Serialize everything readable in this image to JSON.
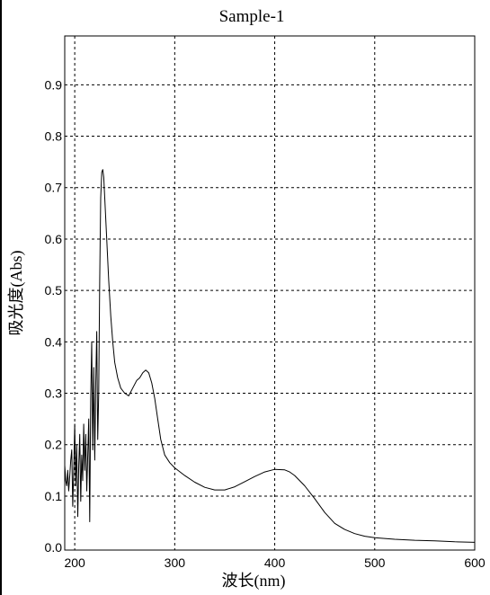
{
  "chart_data": {
    "type": "line",
    "title": "Sample-1",
    "xlabel": "波长(nm)",
    "ylabel": "吸光度(Abs)",
    "xlim": [
      190,
      600
    ],
    "ylim": [
      -0.005,
      0.995
    ],
    "x_ticks": [
      200,
      300,
      400,
      500,
      600
    ],
    "y_ticks": [
      0.0,
      0.1,
      0.2,
      0.3,
      0.4,
      0.5,
      0.6,
      0.7,
      0.8,
      0.9
    ],
    "x_tick_labels": [
      "200",
      "300",
      "400",
      "500",
      "600"
    ],
    "y_tick_labels": [
      "0.0",
      "0.1",
      "0.2",
      "0.3",
      "0.4",
      "0.5",
      "0.6",
      "0.7",
      "0.8",
      "0.9"
    ],
    "grid": true,
    "grid_style": "dashed",
    "legend": "none",
    "series": [
      {
        "color": "#000000",
        "x": [
          190,
          191,
          192,
          193,
          194,
          195,
          196,
          197,
          198,
          199,
          200,
          201,
          202,
          203,
          204,
          205,
          206,
          207,
          208,
          209,
          210,
          211,
          212,
          213,
          214,
          215,
          216,
          217,
          218,
          219,
          220,
          221,
          222,
          223,
          224,
          225,
          226,
          227,
          228,
          229,
          230,
          232,
          234,
          236,
          238,
          240,
          243,
          246,
          250,
          254,
          258,
          262,
          265,
          268,
          271,
          274,
          277,
          280,
          283,
          286,
          290,
          295,
          300,
          310,
          320,
          330,
          340,
          350,
          360,
          370,
          380,
          390,
          400,
          410,
          415,
          420,
          430,
          440,
          450,
          460,
          470,
          480,
          490,
          500,
          520,
          540,
          560,
          580,
          600
        ],
        "y": [
          0.16,
          0.13,
          0.12,
          0.15,
          0.11,
          0.14,
          0.17,
          0.19,
          0.08,
          0.15,
          0.24,
          0.12,
          0.2,
          0.06,
          0.16,
          0.22,
          0.09,
          0.18,
          0.13,
          0.24,
          0.15,
          0.22,
          0.11,
          0.18,
          0.25,
          0.05,
          0.29,
          0.4,
          0.19,
          0.35,
          0.17,
          0.32,
          0.42,
          0.21,
          0.3,
          0.52,
          0.68,
          0.73,
          0.735,
          0.72,
          0.68,
          0.6,
          0.52,
          0.45,
          0.4,
          0.36,
          0.33,
          0.31,
          0.3,
          0.295,
          0.31,
          0.325,
          0.33,
          0.34,
          0.345,
          0.34,
          0.32,
          0.29,
          0.25,
          0.21,
          0.18,
          0.165,
          0.155,
          0.14,
          0.127,
          0.117,
          0.112,
          0.112,
          0.118,
          0.128,
          0.138,
          0.147,
          0.152,
          0.151,
          0.147,
          0.14,
          0.12,
          0.095,
          0.068,
          0.047,
          0.035,
          0.027,
          0.022,
          0.019,
          0.016,
          0.014,
          0.013,
          0.011,
          0.01
        ]
      }
    ]
  }
}
